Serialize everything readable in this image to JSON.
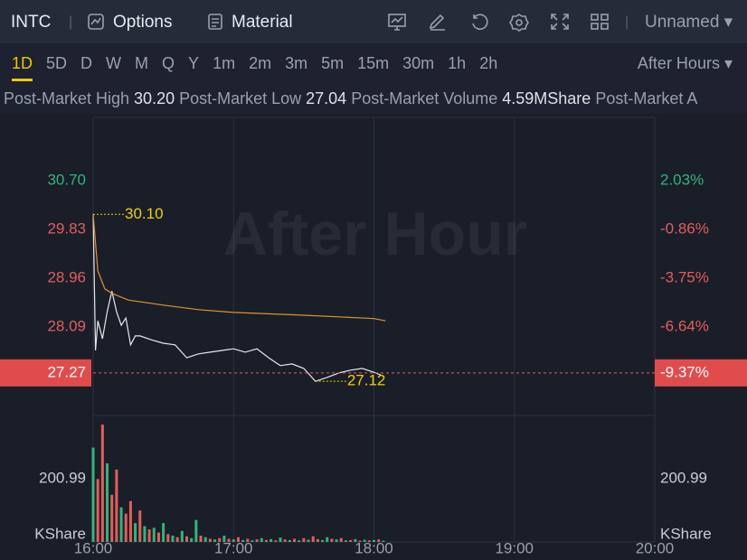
{
  "toolbar": {
    "symbol": "INTC",
    "options": "Options",
    "material": "Material",
    "layout": "Unnamed"
  },
  "timeframes": {
    "items": [
      "1D",
      "5D",
      "D",
      "W",
      "M",
      "Q",
      "Y",
      "1m",
      "2m",
      "3m",
      "5m",
      "15m",
      "30m",
      "1h",
      "2h"
    ],
    "selected": "1D",
    "session": "After Hours"
  },
  "stats": [
    {
      "label": "Post-Market High",
      "value": "30.20"
    },
    {
      "label": "Post-Market Low",
      "value": "27.04"
    },
    {
      "label": "Post-Market Volume",
      "value": "4.59MShare"
    },
    {
      "label": "Post-Market A"
    }
  ],
  "chart_data": [
    {
      "type": "line",
      "watermark": "After Hour",
      "ylim": [
        26.51,
        31.83
      ],
      "yticks": [
        {
          "value": 30.7,
          "label": "30.70"
        },
        29.83,
        28.96,
        28.09
      ],
      "y2lim": [
        -11.88,
        5.78
      ],
      "y2ticks": [
        {
          "value": 2.03,
          "label": "2.03%"
        },
        {
          "value": -0.86,
          "label": "-0.86%"
        },
        {
          "value": -3.75,
          "label": "-3.75%"
        },
        {
          "value": -6.64,
          "label": "-6.64%"
        }
      ],
      "up_color": "#2fb57d",
      "down_color": "#e35d5d",
      "last_price": 27.27,
      "last_change": {
        "value": -9.37,
        "label": "-9.37%"
      },
      "series": [
        {
          "color": "#e6e8ee",
          "x": [
            "16:00",
            "16:01",
            "16:02",
            "16:04",
            "16:06",
            "16:08",
            "16:10",
            "16:12",
            "16:14",
            "16:16",
            "16:18",
            "16:20",
            "16:25",
            "16:30",
            "16:35",
            "16:40",
            "16:45",
            "16:50",
            "16:55",
            "17:00",
            "17:05",
            "17:10",
            "17:15",
            "17:20",
            "17:25",
            "17:30",
            "17:35",
            "17:40",
            "17:45",
            "17:50",
            "17:55",
            "18:00",
            "18:03"
          ],
          "values": [
            30.1,
            27.67,
            28.2,
            27.88,
            28.36,
            28.73,
            28.36,
            28.12,
            28.25,
            27.77,
            27.93,
            27.93,
            27.86,
            27.8,
            27.77,
            27.54,
            27.61,
            27.64,
            27.67,
            27.7,
            27.64,
            27.7,
            27.54,
            27.4,
            27.43,
            27.35,
            27.12,
            27.19,
            27.27,
            27.32,
            27.35,
            27.28,
            27.23
          ]
        },
        {
          "color": "#e0922f",
          "x": [
            "16:00",
            "16:02",
            "16:05",
            "16:08",
            "16:15",
            "16:30",
            "16:45",
            "17:00",
            "17:30",
            "18:00",
            "18:05"
          ],
          "values": [
            30.1,
            29.09,
            28.77,
            28.69,
            28.57,
            28.48,
            28.4,
            28.35,
            28.3,
            28.24,
            28.2
          ]
        }
      ],
      "annotations": [
        {
          "x": "16:00",
          "value": 30.1,
          "label": "30.10"
        },
        {
          "x": "17:35",
          "value": 27.12,
          "label": "27.12"
        }
      ],
      "annotation_color": "#f0d000"
    },
    {
      "type": "bar",
      "unit": "KShare",
      "xlim": [
        "16:00",
        "20:00"
      ],
      "xticks": [
        "16:00",
        "17:00",
        "18:00",
        "19:00",
        "20:00"
      ],
      "ylim": [
        0,
        373.3
      ],
      "yticks": [
        200.99
      ],
      "x": [
        "16:00",
        "16:02",
        "16:04",
        "16:06",
        "16:08",
        "16:10",
        "16:12",
        "16:14",
        "16:16",
        "16:18",
        "16:20",
        "16:22",
        "16:24",
        "16:26",
        "16:28",
        "16:30",
        "16:32",
        "16:34",
        "16:36",
        "16:38",
        "16:40",
        "16:42",
        "16:44",
        "16:46",
        "16:48",
        "16:50",
        "16:52",
        "16:54",
        "16:56",
        "16:58",
        "17:00",
        "17:02",
        "17:04",
        "17:06",
        "17:08",
        "17:10",
        "17:12",
        "17:14",
        "17:16",
        "17:18",
        "17:20",
        "17:22",
        "17:24",
        "17:26",
        "17:28",
        "17:30",
        "17:32",
        "17:34",
        "17:36",
        "17:38",
        "17:40",
        "17:42",
        "17:44",
        "17:46",
        "17:48",
        "17:50",
        "17:52",
        "17:54",
        "17:56",
        "17:58",
        "18:00",
        "18:02",
        "18:04"
      ],
      "series": [
        {
          "color": "#e35d5d",
          "values": [
            null,
            200,
            373,
            null,
            150,
            230,
            null,
            90,
            130,
            null,
            100,
            null,
            40,
            null,
            30,
            null,
            25,
            null,
            15,
            null,
            18,
            null,
            null,
            20,
            null,
            10,
            null,
            12,
            null,
            10,
            null,
            15,
            null,
            10,
            null,
            8,
            null,
            6,
            null,
            5,
            null,
            8,
            null,
            10,
            null,
            12,
            null,
            18,
            9,
            null,
            null,
            10,
            null,
            12,
            null,
            6,
            null,
            4,
            null,
            5,
            null,
            8,
            null
          ]
        },
        {
          "color": "#2fb57d",
          "values": [
            300,
            null,
            null,
            250,
            null,
            null,
            110,
            null,
            null,
            60,
            null,
            50,
            null,
            45,
            null,
            60,
            null,
            20,
            null,
            35,
            null,
            12,
            70,
            null,
            15,
            null,
            8,
            null,
            20,
            null,
            8,
            null,
            6,
            null,
            5,
            null,
            12,
            null,
            9,
            null,
            14,
            null,
            6,
            null,
            5,
            null,
            7,
            null,
            null,
            6,
            15,
            null,
            8,
            null,
            5,
            null,
            9,
            null,
            7,
            null,
            6,
            null,
            4
          ]
        }
      ]
    }
  ]
}
